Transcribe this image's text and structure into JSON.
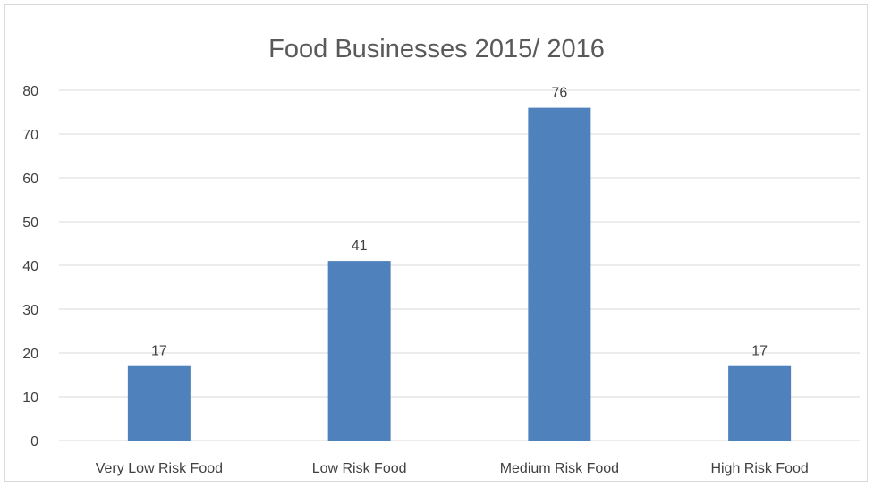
{
  "chart_data": {
    "type": "bar",
    "title": "Food Businesses 2015/ 2016",
    "xlabel": "",
    "ylabel": "",
    "categories": [
      "Very Low Risk Food",
      "Low Risk Food",
      "Medium Risk Food",
      "High Risk Food"
    ],
    "values": [
      17,
      41,
      76,
      17
    ],
    "data_labels": [
      "17",
      "41",
      "76",
      "17"
    ],
    "ylim": [
      0,
      80
    ],
    "yticks": [
      0,
      10,
      20,
      30,
      40,
      50,
      60,
      70,
      80
    ],
    "ytick_labels": [
      "0",
      "10",
      "20",
      "30",
      "40",
      "50",
      "60",
      "70",
      "80"
    ],
    "grid": true,
    "legend": "none",
    "colors": {
      "bar": "#4f81bd",
      "grid": "#d9d9d9",
      "text": "#404040",
      "title": "#595959"
    }
  }
}
